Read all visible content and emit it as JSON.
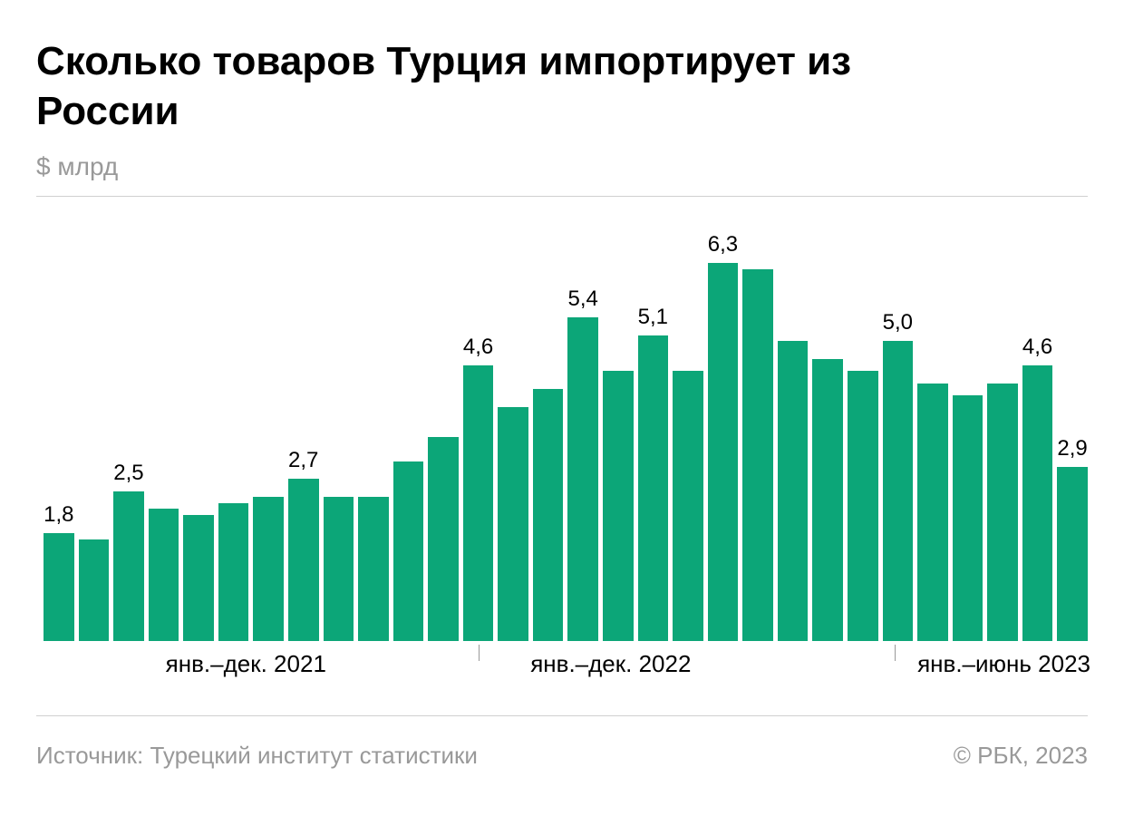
{
  "title": "Сколько товаров Турция импортирует из России",
  "subtitle": "$ млрд",
  "source": "Источник: Турецкий институт статистики",
  "copyright": "© РБК, 2023",
  "chart": {
    "type": "bar",
    "bar_color": "#0ca678",
    "background_color": "#ffffff",
    "rule_color": "#d0d0d0",
    "text_muted_color": "#999999",
    "text_color": "#000000",
    "y_max": 6.5,
    "y_min": 0,
    "label_fontsize": 24,
    "title_fontsize": 44,
    "subtitle_fontsize": 28,
    "footer_fontsize": 26,
    "period_fontsize": 26,
    "bars": [
      {
        "value": 1.8,
        "label": "1,8"
      },
      {
        "value": 1.7,
        "label": ""
      },
      {
        "value": 2.5,
        "label": "2,5"
      },
      {
        "value": 2.2,
        "label": ""
      },
      {
        "value": 2.1,
        "label": ""
      },
      {
        "value": 2.3,
        "label": ""
      },
      {
        "value": 2.4,
        "label": ""
      },
      {
        "value": 2.7,
        "label": "2,7"
      },
      {
        "value": 2.4,
        "label": ""
      },
      {
        "value": 2.4,
        "label": ""
      },
      {
        "value": 3.0,
        "label": ""
      },
      {
        "value": 3.4,
        "label": ""
      },
      {
        "value": 4.6,
        "label": "4,6"
      },
      {
        "value": 3.9,
        "label": ""
      },
      {
        "value": 4.2,
        "label": ""
      },
      {
        "value": 5.4,
        "label": "5,4"
      },
      {
        "value": 4.5,
        "label": ""
      },
      {
        "value": 5.1,
        "label": "5,1"
      },
      {
        "value": 4.5,
        "label": ""
      },
      {
        "value": 6.3,
        "label": "6,3"
      },
      {
        "value": 6.2,
        "label": ""
      },
      {
        "value": 5.0,
        "label": ""
      },
      {
        "value": 4.7,
        "label": ""
      },
      {
        "value": 4.5,
        "label": ""
      },
      {
        "value": 5.0,
        "label": "5,0"
      },
      {
        "value": 4.3,
        "label": ""
      },
      {
        "value": 4.1,
        "label": ""
      },
      {
        "value": 4.3,
        "label": ""
      },
      {
        "value": 4.6,
        "label": "4,6"
      },
      {
        "value": 2.9,
        "label": "2,9"
      }
    ],
    "periods": [
      {
        "label": "янв.–дек. 2021",
        "tick_position_pct": 42.1,
        "label_position_pct": 12.3
      },
      {
        "label": "янв.–дек. 2022",
        "tick_position_pct": 81.6,
        "label_position_pct": 47.0
      },
      {
        "label": "янв.–июнь 2023",
        "tick_position_pct": null,
        "label_position_pct": 83.8
      }
    ]
  }
}
